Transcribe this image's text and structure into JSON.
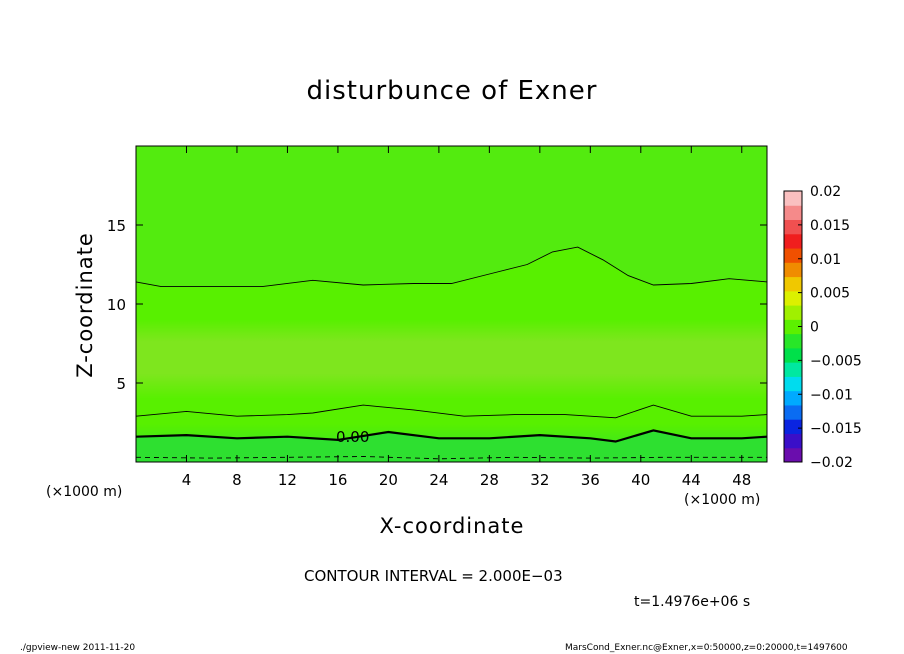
{
  "chart_data": {
    "type": "heatmap",
    "title": "disturbunce of Exner",
    "xlabel": "X-coordinate",
    "ylabel": "Z-coordinate",
    "x_unit_left": "(×1000 m)",
    "x_unit_right": "(×1000 m)",
    "xlim": [
      0,
      50
    ],
    "ylim": [
      0,
      20
    ],
    "xticks": [
      4,
      8,
      12,
      16,
      20,
      24,
      28,
      32,
      36,
      40,
      44,
      48
    ],
    "yticks": [
      5,
      10,
      15
    ],
    "colorbar_levels": [
      -0.02,
      -0.015,
      -0.01,
      -0.005,
      0,
      0.005,
      0.01,
      0.015,
      0.02
    ],
    "colorbar_labels": [
      "0.02",
      "0.015",
      "0.01",
      "0.005",
      "0",
      "−0.005",
      "−0.01",
      "−0.015",
      "−0.02"
    ],
    "colorbar_colors": [
      "#6a0dad",
      "#3a0fc8",
      "#0a24e0",
      "#0a6cf2",
      "#00aaff",
      "#00dcee",
      "#00e8a0",
      "#00e04a",
      "#28e628",
      "#5cf000",
      "#a0f000",
      "#dcf000",
      "#f0c800",
      "#f08c00",
      "#f05000",
      "#f01e1e",
      "#f05050",
      "#f58a8a",
      "#fac0c0"
    ],
    "field_colors": {
      "low": "#2ee030",
      "mid": "#58f000",
      "high": "#7ee61e"
    },
    "contour_label": "0.00",
    "contour_lines": [
      {
        "name": "contour-zero-line",
        "style": "thick",
        "x": [
          0,
          4,
          8,
          12,
          16,
          20,
          24,
          28,
          32,
          36,
          38,
          41,
          44,
          48,
          50
        ],
        "z": [
          1.6,
          1.7,
          1.5,
          1.6,
          1.4,
          1.9,
          1.5,
          1.5,
          1.7,
          1.5,
          1.3,
          2.0,
          1.5,
          1.5,
          1.6
        ]
      },
      {
        "name": "contour-low-line",
        "style": "thin",
        "x": [
          0,
          4,
          8,
          12,
          14,
          18,
          22,
          26,
          30,
          34,
          38,
          41,
          44,
          48,
          50
        ],
        "z": [
          2.9,
          3.2,
          2.9,
          3.0,
          3.1,
          3.6,
          3.3,
          2.9,
          3.0,
          3.0,
          2.8,
          3.6,
          2.9,
          2.9,
          3.0
        ]
      },
      {
        "name": "contour-upper-line",
        "style": "thin",
        "x": [
          0,
          2,
          6,
          10,
          14,
          18,
          22,
          25,
          28,
          31,
          33,
          35,
          37,
          39,
          41,
          44,
          47,
          50
        ],
        "z": [
          11.4,
          11.1,
          11.1,
          11.1,
          11.5,
          11.2,
          11.3,
          11.3,
          11.9,
          12.5,
          13.3,
          13.6,
          12.8,
          11.8,
          11.2,
          11.3,
          11.6,
          11.4
        ]
      },
      {
        "name": "contour-bottom-dashed-line",
        "style": "dashed",
        "x": [
          0,
          6,
          12,
          18,
          24,
          30,
          36,
          42,
          50
        ],
        "z": [
          0.3,
          0.25,
          0.3,
          0.35,
          0.2,
          0.3,
          0.25,
          0.3,
          0.3
        ]
      }
    ]
  },
  "contour_interval": "CONTOUR INTERVAL = 2.000E−03",
  "time_label": "t=1.4976e+06 s",
  "footer": {
    "left": "./gpview-new  2011-11-20",
    "right": "MarsCond_Exner.nc@Exner,x=0:50000,z=0:20000,t=1497600"
  }
}
